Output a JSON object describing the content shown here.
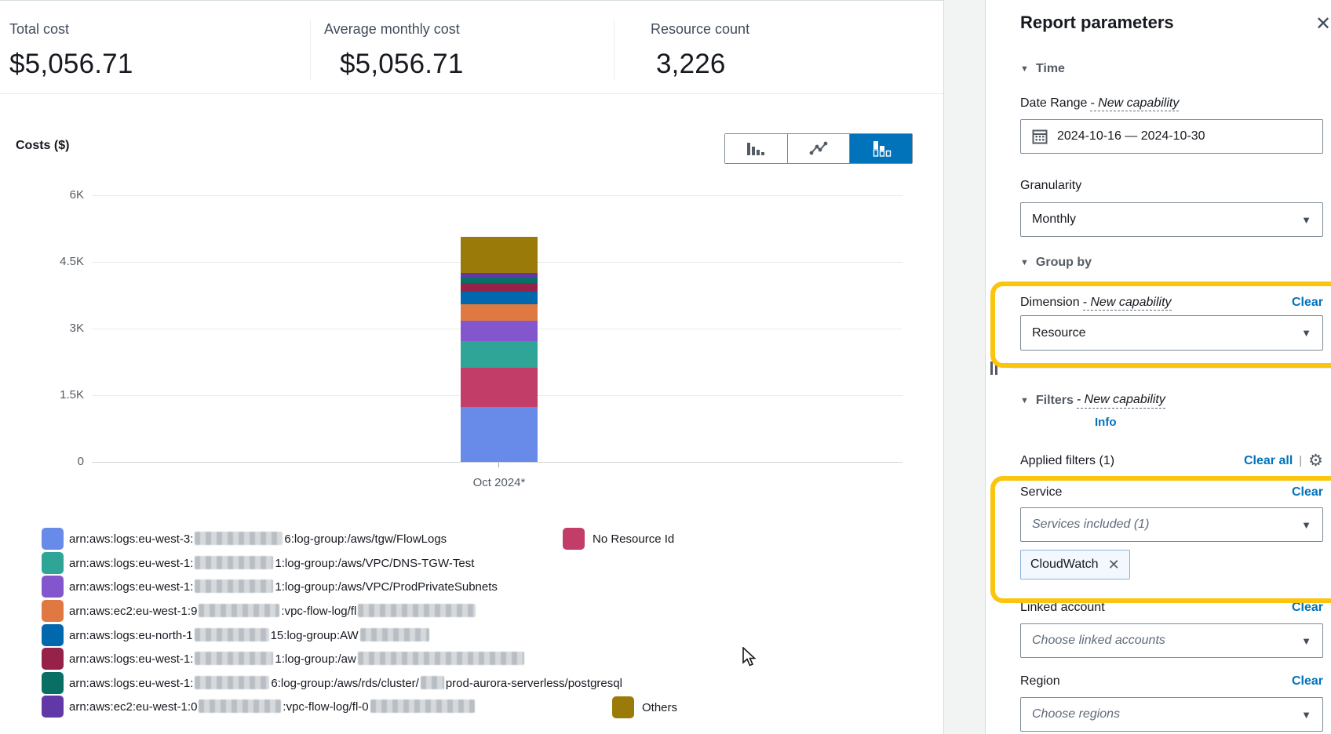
{
  "metrics": {
    "items": [
      {
        "label": "Total cost",
        "value": "$5,056.71"
      },
      {
        "label": "Average monthly cost",
        "value": "$5,056.71"
      },
      {
        "label": "Resource count",
        "value": "3,226"
      }
    ]
  },
  "chart": {
    "title": "Costs ($)",
    "x_axis_label": "Oct 2024*"
  },
  "toolbar": {
    "buttons": [
      {
        "name": "bar-chart"
      },
      {
        "name": "line-chart"
      },
      {
        "name": "stacked-bar-chart",
        "active": true
      }
    ]
  },
  "chart_data": {
    "type": "bar",
    "stacked": true,
    "categories": [
      "Oct 2024*"
    ],
    "title": "Costs ($)",
    "ylabel": "Costs ($)",
    "ylim": [
      0,
      6000
    ],
    "yticks": [
      {
        "v": 0,
        "label": "0"
      },
      {
        "v": 1500,
        "label": "1.5K"
      },
      {
        "v": 3000,
        "label": "3K"
      },
      {
        "v": 4500,
        "label": "4.5K"
      },
      {
        "v": 6000,
        "label": "6K"
      }
    ],
    "total": 5056.71,
    "series": [
      {
        "name": "arn:aws:logs:eu-west-3:<redacted>6:log-group:/aws/tgw/FlowLogs",
        "value": 1240,
        "color": "#688ae8"
      },
      {
        "name": "No Resource Id",
        "value": 880,
        "color": "#c33d69"
      },
      {
        "name": "arn:aws:logs:eu-west-1:<redacted>1:log-group:/aws/VPC/DNS-TGW-Test",
        "value": 590,
        "color": "#2ea597"
      },
      {
        "name": "arn:aws:logs:eu-west-1:<redacted>1:log-group:/aws/VPC/ProdPrivateSubnets",
        "value": 470,
        "color": "#8456ce"
      },
      {
        "name": "arn:aws:ec2:eu-west-1:9<redacted>:vpc-flow-log/fl<redacted>",
        "value": 365,
        "color": "#0268ad",
        "color_note": "bar uses orange",
        "bar_color": "#e07941"
      },
      {
        "name": "arn:aws:logs:eu-north-1<redacted>15:log-group:AW<redacted>",
        "value": 280,
        "color": "#0268ad"
      },
      {
        "name": "arn:aws:logs:eu-west-1:<redacted>1:log-group:/aw<redacted>",
        "value": 190,
        "color": "#962249"
      },
      {
        "name": "arn:aws:logs:eu-west-1:<redacted>6:log-group:/aws/rds/cluster/<redacted>prod-aurora-serverless/postgresql",
        "value": 130,
        "color": "#096f64"
      },
      {
        "name": "arn:aws:ec2:eu-west-1:0<redacted>:vpc-flow-log/fl-0<redacted>",
        "value": 115,
        "color": "#6237a7"
      },
      {
        "name": "Others",
        "value": 800,
        "color": "#9a7b0a"
      }
    ]
  },
  "legend": {
    "col1": [
      {
        "color": "#688ae8",
        "parts": [
          {
            "text": "arn:aws:logs:eu-west-3:"
          },
          {
            "redacted": 112
          },
          {
            "text": "6:log-group:/aws/tgw/FlowLogs"
          }
        ]
      },
      {
        "color": "#2ea597",
        "parts": [
          {
            "text": "arn:aws:logs:eu-west-1:"
          },
          {
            "redacted": 100
          },
          {
            "text": "1:log-group:/aws/VPC/DNS-TGW-Test"
          }
        ]
      },
      {
        "color": "#8456ce",
        "parts": [
          {
            "text": "arn:aws:logs:eu-west-1:"
          },
          {
            "redacted": 100
          },
          {
            "text": "1:log-group:/aws/VPC/ProdPrivateSubnets"
          }
        ]
      },
      {
        "color": "#e07941",
        "parts": [
          {
            "text": "arn:aws:ec2:eu-west-1:9"
          },
          {
            "redacted": 103
          },
          {
            "text": ":vpc-flow-log/fl"
          },
          {
            "redacted": 150
          }
        ]
      },
      {
        "color": "#0268ad",
        "parts": [
          {
            "text": "arn:aws:logs:eu-north-1"
          },
          {
            "redacted": 95
          },
          {
            "text": "15:log-group:AW"
          },
          {
            "redacted": 88
          }
        ]
      },
      {
        "color": "#962249",
        "parts": [
          {
            "text": "arn:aws:logs:eu-west-1:"
          },
          {
            "redacted": 100
          },
          {
            "text": "1:log-group:/aw"
          },
          {
            "redacted": 212
          }
        ]
      },
      {
        "color": "#096f64",
        "parts": [
          {
            "text": "arn:aws:logs:eu-west-1:"
          },
          {
            "redacted": 95
          },
          {
            "text": "6:log-group:/aws/rds/cluster/"
          },
          {
            "redacted": 30
          },
          {
            "text": "prod-aurora-serverless/postgresql"
          }
        ]
      },
      {
        "color": "#6237a7",
        "parts": [
          {
            "text": "arn:aws:ec2:eu-west-1:0"
          },
          {
            "redacted": 105
          },
          {
            "text": ":vpc-flow-log/fl-0"
          },
          {
            "redacted": 133
          }
        ]
      }
    ],
    "no_resource_label": "No Resource Id",
    "others_label": "Others"
  },
  "sidebar": {
    "title": "Report parameters",
    "close_icon": "✕",
    "new_capability": "- New capability",
    "time": {
      "header": "Time",
      "date_range_label": "Date Range",
      "date_value": "2024-10-16 — 2024-10-30",
      "granularity_label": "Granularity",
      "granularity_value": "Monthly"
    },
    "group_by": {
      "header": "Group by",
      "dimension_label": "Dimension",
      "clear": "Clear",
      "dimension_value": "Resource"
    },
    "filters": {
      "header": "Filters",
      "info": "Info",
      "applied_label": "Applied filters (1)",
      "clear_all": "Clear all",
      "pipe": "|",
      "service_label": "Service",
      "clear": "Clear",
      "service_value": "Services included (1)",
      "service_token": "CloudWatch",
      "token_remove_icon": "✕",
      "linked_label": "Linked account",
      "linked_placeholder": "Choose linked accounts",
      "region_label": "Region",
      "region_placeholder": "Choose regions"
    },
    "accent_colors": {
      "highlight_yellow": "#fbc40d",
      "link_blue": "#0073bb",
      "active_button_blue": "#0073bb"
    }
  }
}
